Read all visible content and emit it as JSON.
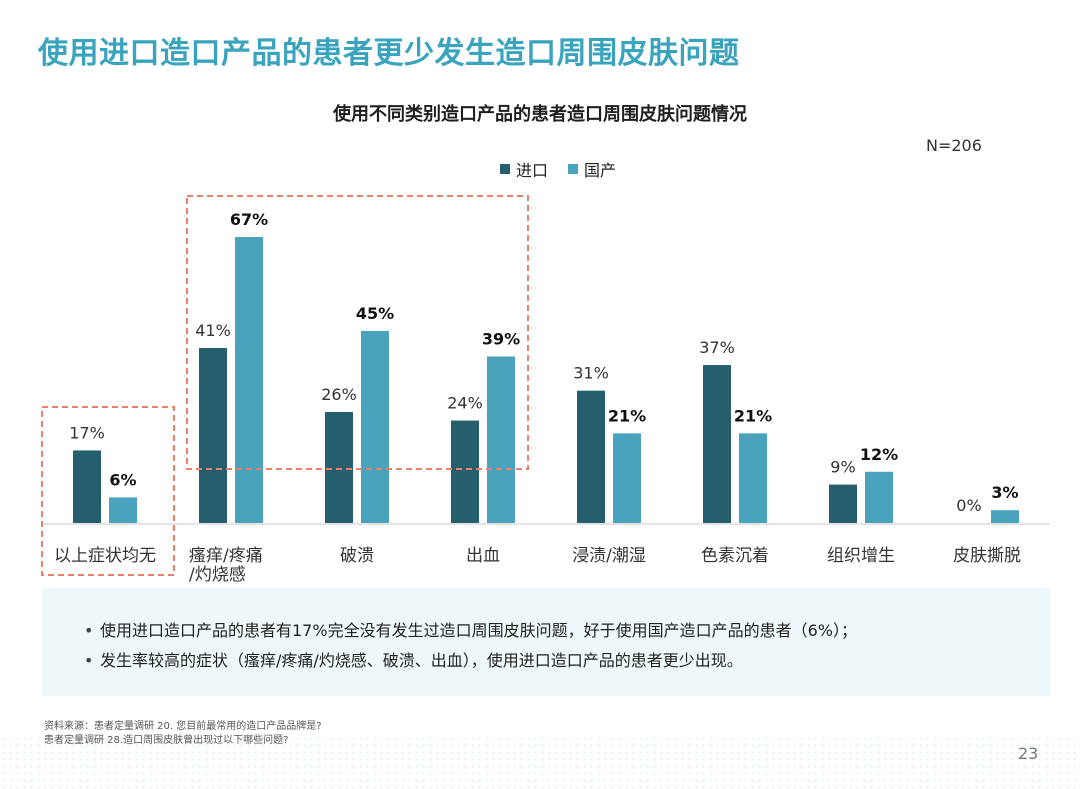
{
  "page": {
    "title": "使用进口造口产品的患者更少发生造口周围皮肤问题",
    "page_number": "23",
    "sources": [
      "资料来源：患者定量调研  20. 您目前最常用的造口产品品牌是?",
      "患者定量调研    28.造口周围皮肤曾出现过以下哪些问题?"
    ]
  },
  "chart_data": {
    "type": "bar",
    "title": "使用不同类别造口产品的患者造口周围皮肤问题情况",
    "note": "N=206",
    "categories": [
      "以上症状均无",
      "瘙痒/疼痛/灼烧感",
      "破溃",
      "出血",
      "浸渍/潮湿",
      "色素沉着",
      "组织增生",
      "皮肤撕脱"
    ],
    "category_lines": [
      [
        "以上症状均无"
      ],
      [
        "瘙痒/疼痛",
        "/灼烧感"
      ],
      [
        "破溃"
      ],
      [
        "出血"
      ],
      [
        "浸渍/潮湿"
      ],
      [
        "色素沉着"
      ],
      [
        "组织增生"
      ],
      [
        "皮肤撕脱"
      ]
    ],
    "series": [
      {
        "name": "进口",
        "color": "#255f6e",
        "values": [
          17,
          41,
          26,
          24,
          31,
          37,
          9,
          0
        ],
        "labels": [
          "17%",
          "41%",
          "26%",
          "24%",
          "31%",
          "37%",
          "9%",
          "0%"
        ]
      },
      {
        "name": "国产",
        "color": "#4aa3bd",
        "values": [
          6,
          67,
          45,
          39,
          21,
          21,
          12,
          3
        ],
        "labels": [
          "6%",
          "67%",
          "45%",
          "39%",
          "21%",
          "21%",
          "12%",
          "3%"
        ]
      }
    ],
    "ylim": [
      0,
      70
    ],
    "highlight_groups": [
      [
        0
      ],
      [
        1,
        2,
        3
      ]
    ],
    "highlight_color": "#e8806a"
  },
  "summary": [
    "使用进口造口产品的患者有17%完全没有发生过造口周围皮肤问题，好于使用国产造口产品的患者（6%）；",
    "发生率较高的症状（瘙痒/疼痛/灼烧感、破溃、出血），使用进口造口产品的患者更少出现。"
  ]
}
